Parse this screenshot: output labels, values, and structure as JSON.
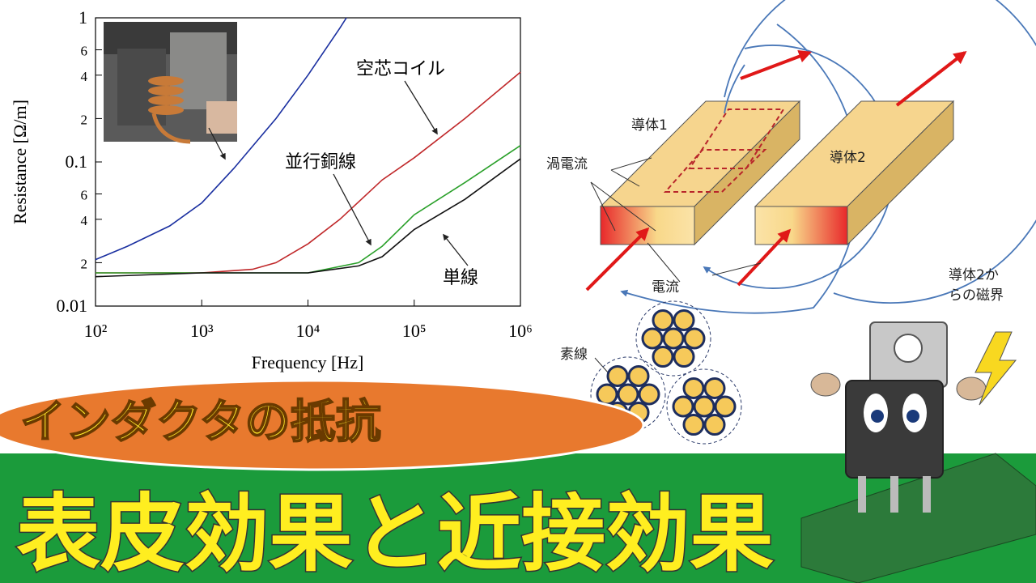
{
  "chart_data": {
    "type": "line",
    "xlabel": "Frequency [Hz]",
    "ylabel": "Resistance [Ω/m]",
    "xscale": "log",
    "yscale": "log",
    "xlim": [
      100,
      1000000
    ],
    "ylim": [
      0.01,
      1
    ],
    "xticks": [
      {
        "value": 100,
        "label": "10²"
      },
      {
        "value": 1000,
        "label": "10³"
      },
      {
        "value": 10000,
        "label": "10⁴"
      },
      {
        "value": 100000,
        "label": "10⁵"
      },
      {
        "value": 1000000,
        "label": "10⁶"
      }
    ],
    "yticks": [
      0.01,
      {
        "value": 0.02,
        "label": "2"
      },
      {
        "value": 0.04,
        "label": "4"
      },
      {
        "value": 0.06,
        "label": "6"
      },
      0.1,
      {
        "value": 0.2,
        "label": "2"
      },
      {
        "value": 0.4,
        "label": "4"
      },
      {
        "value": 0.6,
        "label": "6"
      },
      1
    ],
    "series": [
      {
        "color": "#1a2fa0",
        "x": [
          100,
          200,
          500,
          1000,
          2000,
          5000,
          10000,
          20000,
          23000
        ],
        "values": [
          0.021,
          0.026,
          0.036,
          0.052,
          0.09,
          0.2,
          0.4,
          0.85,
          1
        ]
      },
      {
        "name": "空芯コイル",
        "color": "#c0282a",
        "x": [
          100,
          1000,
          3000,
          5000,
          10000,
          20000,
          50000,
          100000,
          300000,
          1000000
        ],
        "values": [
          0.017,
          0.017,
          0.018,
          0.02,
          0.027,
          0.04,
          0.075,
          0.107,
          0.2,
          0.42
        ]
      },
      {
        "name": "並行銅線",
        "color": "#2aa02a",
        "x": [
          100,
          1000,
          10000,
          30000,
          50000,
          100000,
          300000,
          1000000
        ],
        "values": [
          0.017,
          0.017,
          0.017,
          0.02,
          0.026,
          0.043,
          0.072,
          0.13
        ]
      },
      {
        "name": "単線",
        "color": "#111111",
        "x": [
          100,
          1000,
          10000,
          30000,
          50000,
          100000,
          300000,
          1000000
        ],
        "values": [
          0.016,
          0.017,
          0.017,
          0.019,
          0.022,
          0.034,
          0.055,
          0.105
        ]
      }
    ]
  },
  "diagram": {
    "conductor1": "導体1",
    "conductor2": "導体2",
    "eddy_current": "渦電流",
    "current": "電流",
    "field": [
      "導体2か",
      "らの磁界"
    ],
    "strand": "素線"
  },
  "banner": {
    "subtitle": "インダクタの抵抗",
    "title": "表皮効果と近接効果"
  }
}
